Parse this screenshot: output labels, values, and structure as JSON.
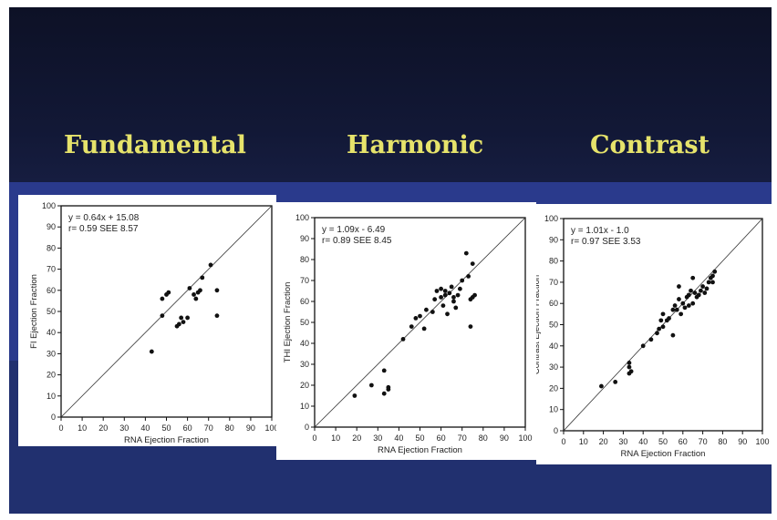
{
  "headings": [
    "Fundamental",
    "Harmonic",
    "Contrast"
  ],
  "chart_data": [
    {
      "type": "scatter",
      "title": "Fundamental",
      "xlabel": "RNA Ejection Fraction",
      "ylabel": "FI Ejection Fraction",
      "xlim": [
        0,
        100
      ],
      "ylim": [
        0,
        100
      ],
      "xticks": [
        "0",
        "10",
        "20",
        "30",
        "40",
        "50",
        "60",
        "70",
        "80",
        "90",
        "100"
      ],
      "yticks": [
        "0",
        "10",
        "20",
        "30",
        "40",
        "50",
        "60",
        "70",
        "80",
        "90",
        "100"
      ],
      "annotations": [
        "y = 0.64x + 15.08",
        "r= 0.59 SEE 8.57"
      ],
      "identity_line": true,
      "points": [
        [
          43,
          31
        ],
        [
          48,
          48
        ],
        [
          48,
          56
        ],
        [
          50,
          58
        ],
        [
          51,
          59
        ],
        [
          55,
          43
        ],
        [
          56,
          44
        ],
        [
          57,
          47
        ],
        [
          58,
          45
        ],
        [
          60,
          47
        ],
        [
          61,
          61
        ],
        [
          63,
          58
        ],
        [
          64,
          56
        ],
        [
          65,
          59
        ],
        [
          66,
          60
        ],
        [
          67,
          66
        ],
        [
          71,
          72
        ],
        [
          74,
          60
        ],
        [
          74,
          48
        ]
      ]
    },
    {
      "type": "scatter",
      "title": "Harmonic",
      "xlabel": "RNA Ejection Fraction",
      "ylabel": "THI Ejection Fraction",
      "xlim": [
        0,
        100
      ],
      "ylim": [
        0,
        100
      ],
      "xticks": [
        "0",
        "10",
        "20",
        "30",
        "40",
        "50",
        "60",
        "70",
        "80",
        "90",
        "100"
      ],
      "yticks": [
        "0",
        "10",
        "20",
        "30",
        "40",
        "50",
        "60",
        "70",
        "80",
        "90",
        "100"
      ],
      "annotations": [
        "y = 1.09x - 6.49",
        "r= 0.89 SEE 8.45"
      ],
      "identity_line": true,
      "points": [
        [
          19,
          15
        ],
        [
          27,
          20
        ],
        [
          33,
          16
        ],
        [
          33,
          27
        ],
        [
          35,
          18
        ],
        [
          35,
          19
        ],
        [
          42,
          42
        ],
        [
          46,
          48
        ],
        [
          48,
          52
        ],
        [
          50,
          53
        ],
        [
          52,
          47
        ],
        [
          53,
          56
        ],
        [
          56,
          55
        ],
        [
          57,
          61
        ],
        [
          58,
          65
        ],
        [
          60,
          62
        ],
        [
          60,
          66
        ],
        [
          61,
          58
        ],
        [
          62,
          63
        ],
        [
          62,
          65
        ],
        [
          63,
          54
        ],
        [
          64,
          64
        ],
        [
          65,
          67
        ],
        [
          66,
          62
        ],
        [
          66,
          60
        ],
        [
          67,
          57
        ],
        [
          68,
          63
        ],
        [
          69,
          66
        ],
        [
          70,
          70
        ],
        [
          72,
          83
        ],
        [
          73,
          72
        ],
        [
          74,
          61
        ],
        [
          75,
          62
        ],
        [
          75,
          78
        ],
        [
          74,
          48
        ],
        [
          76,
          63
        ]
      ]
    },
    {
      "type": "scatter",
      "title": "Contrast",
      "xlabel": "RNA Ejection Fraction",
      "ylabel": "Contrast Ejection Fraction",
      "xlim": [
        0,
        100
      ],
      "ylim": [
        0,
        100
      ],
      "xticks": [
        "0",
        "10",
        "20",
        "30",
        "40",
        "50",
        "60",
        "70",
        "80",
        "90",
        "100"
      ],
      "yticks": [
        "0",
        "10",
        "20",
        "30",
        "40",
        "50",
        "60",
        "70",
        "80",
        "90",
        "100"
      ],
      "annotations": [
        "y = 1.01x - 1.0",
        "r= 0.97 SEE 3.53"
      ],
      "identity_line": true,
      "points": [
        [
          19,
          21
        ],
        [
          26,
          23
        ],
        [
          33,
          27
        ],
        [
          33,
          30
        ],
        [
          33,
          32
        ],
        [
          34,
          28
        ],
        [
          40,
          40
        ],
        [
          44,
          43
        ],
        [
          47,
          46
        ],
        [
          48,
          48
        ],
        [
          49,
          52
        ],
        [
          50,
          49
        ],
        [
          50,
          55
        ],
        [
          52,
          52
        ],
        [
          53,
          53
        ],
        [
          55,
          57
        ],
        [
          55,
          45
        ],
        [
          56,
          59
        ],
        [
          57,
          57
        ],
        [
          58,
          62
        ],
        [
          58,
          68
        ],
        [
          59,
          55
        ],
        [
          60,
          60
        ],
        [
          61,
          58
        ],
        [
          62,
          63
        ],
        [
          63,
          64
        ],
        [
          63,
          59
        ],
        [
          64,
          66
        ],
        [
          65,
          60
        ],
        [
          65,
          72
        ],
        [
          66,
          65
        ],
        [
          67,
          63
        ],
        [
          68,
          64
        ],
        [
          69,
          66
        ],
        [
          70,
          68
        ],
        [
          71,
          65
        ],
        [
          72,
          67
        ],
        [
          73,
          70
        ],
        [
          74,
          72
        ],
        [
          75,
          73
        ],
        [
          75,
          70
        ],
        [
          76,
          75
        ]
      ]
    }
  ]
}
